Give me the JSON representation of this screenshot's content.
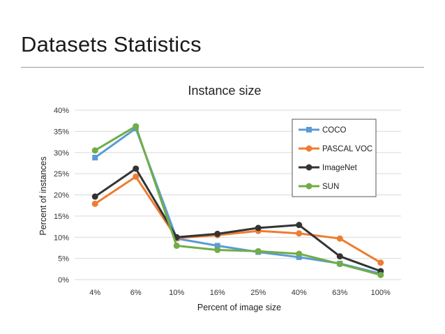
{
  "slide": {
    "title": "Datasets Statistics"
  },
  "colors": {
    "coco": "#5b9bd5",
    "pascal_voc": "#ed7d31",
    "imagenet": "#333333",
    "sun": "#70ad47",
    "grid": "#d9d9d9",
    "title_rule": "#9a9a9a"
  },
  "chart_data": {
    "type": "line",
    "title": "Instance size",
    "xlabel": "Percent of image size",
    "ylabel": "Percent of instances",
    "categories": [
      "4%",
      "6%",
      "10%",
      "16%",
      "25%",
      "40%",
      "63%",
      "100%"
    ],
    "ylim": [
      0,
      40
    ],
    "yticks": [
      0,
      5,
      10,
      15,
      20,
      25,
      30,
      35,
      40
    ],
    "y_tick_format": "percent",
    "grid": true,
    "legend_position": "top-right",
    "series": [
      {
        "name": "COCO",
        "marker": "square",
        "color": "#5b9bd5",
        "values": [
          28.8,
          35.7,
          9.7,
          8.0,
          6.5,
          5.3,
          3.8,
          1.4
        ]
      },
      {
        "name": "PASCAL VOC",
        "marker": "circle",
        "color": "#ed7d31",
        "values": [
          17.9,
          24.3,
          9.8,
          10.5,
          11.5,
          10.9,
          9.7,
          4.0
        ]
      },
      {
        "name": "ImageNet",
        "marker": "circle",
        "color": "#333333",
        "values": [
          19.6,
          26.2,
          10.0,
          10.8,
          12.2,
          12.9,
          5.5,
          2.0
        ]
      },
      {
        "name": "SUN",
        "marker": "circle",
        "color": "#70ad47",
        "values": [
          30.5,
          36.2,
          8.0,
          7.0,
          6.7,
          6.1,
          3.7,
          1.1
        ]
      }
    ]
  }
}
